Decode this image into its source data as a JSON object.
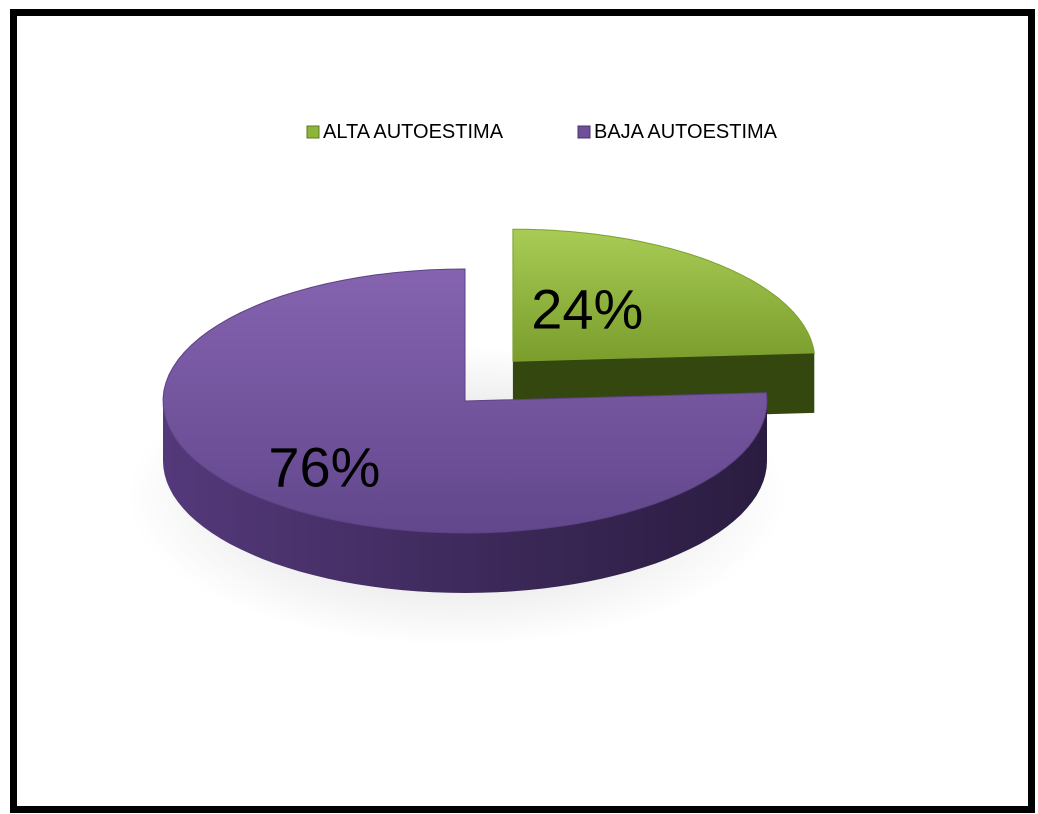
{
  "chart_data": {
    "type": "pie",
    "style": "3d-exploded",
    "categories": [
      "ALTA AUTOESTIMA",
      "BAJA AUTOESTIMA"
    ],
    "values": [
      24,
      76
    ],
    "value_labels": [
      "24%",
      "76%"
    ],
    "colors": [
      "#8fb43a",
      "#6f4f99"
    ],
    "legend": {
      "position": "top",
      "entries": [
        "ALTA AUTOESTIMA",
        "BAJA AUTOESTIMA"
      ]
    }
  }
}
